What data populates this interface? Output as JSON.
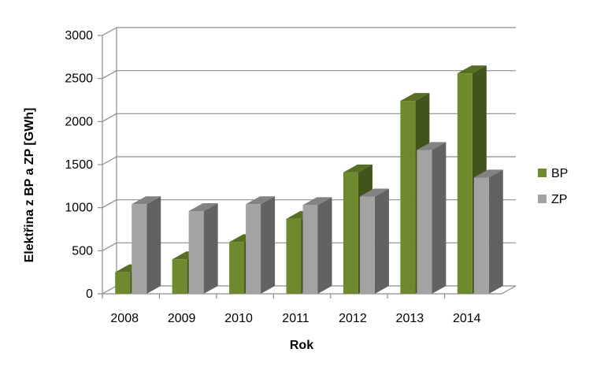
{
  "chart_data": {
    "type": "bar",
    "categories": [
      "2008",
      "2009",
      "2010",
      "2011",
      "2012",
      "2013",
      "2014"
    ],
    "series": [
      {
        "name": "BP",
        "values": [
          250,
          400,
          600,
          870,
          1410,
          2240,
          2560
        ],
        "color": "#6f8a2e"
      },
      {
        "name": "ZP",
        "values": [
          1040,
          960,
          1040,
          1030,
          1130,
          1670,
          1350
        ],
        "color": "#a3a3a3"
      }
    ],
    "title": "",
    "xlabel": "Rok",
    "ylabel": "Elektřina z BP a ZP [GWh]",
    "ylim": [
      0,
      3000
    ],
    "yticks": [
      "0",
      "500",
      "1000",
      "1500",
      "2000",
      "2500",
      "3000"
    ],
    "grid": true,
    "legend": "right",
    "style": "3d-clustered-column"
  }
}
